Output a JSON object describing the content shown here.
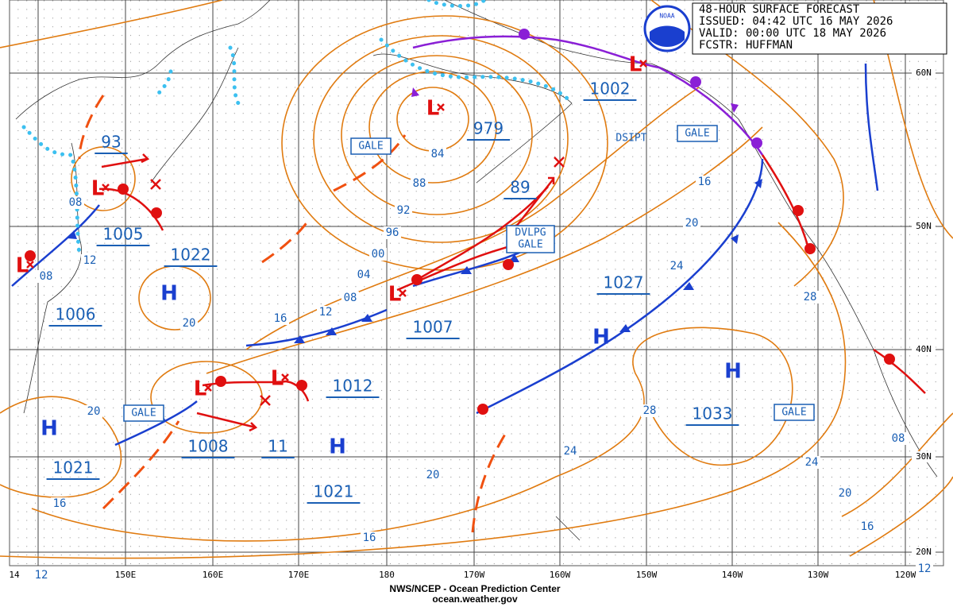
{
  "header": {
    "lines": [
      "48-HOUR SURFACE FORECAST",
      "ISSUED: 04:42 UTC 16 MAY 2026",
      "VALID:  00:00 UTC 18 MAY 2026",
      "FCSTR: HUFFMAN"
    ]
  },
  "logo": "NOAA",
  "footer": {
    "lines": [
      "NWS/NCEP - Ocean Prediction Center",
      "ocean.weather.gov"
    ]
  },
  "grid": {
    "latitude_labels": [
      "60N",
      "50N",
      "40N",
      "30N",
      "20N"
    ],
    "longitude_labels": [
      "14",
      "150E",
      "160E",
      "170E",
      "180",
      "170W",
      "160W",
      "150W",
      "140W",
      "130W",
      "120W"
    ]
  },
  "pressure_values": [
    "93",
    "1005",
    "1022",
    "1006",
    "979",
    "1002",
    "89",
    "1027",
    "1007",
    "1012",
    "1008",
    "11",
    "1021",
    "1021",
    "1033"
  ],
  "high_symbols": [
    "H",
    "H",
    "H",
    "H",
    "H"
  ],
  "low_symbols": [
    "L",
    "L",
    "L",
    "L",
    "L",
    "L",
    "L"
  ],
  "isobar_labels": [
    "08",
    "12",
    "08",
    "20",
    "84",
    "88",
    "92",
    "96",
    "00",
    "04",
    "08",
    "12",
    "16",
    "20",
    "16",
    "20",
    "16",
    "24",
    "28",
    "24",
    "20",
    "16",
    "28",
    "24",
    "20",
    "16",
    "08",
    "12",
    "12"
  ],
  "boxed_labels": [
    "GALE",
    "GALE",
    "GALE",
    "GALE",
    "DVLPG",
    "GALE"
  ],
  "annotations": [
    "DSIPT"
  ]
}
